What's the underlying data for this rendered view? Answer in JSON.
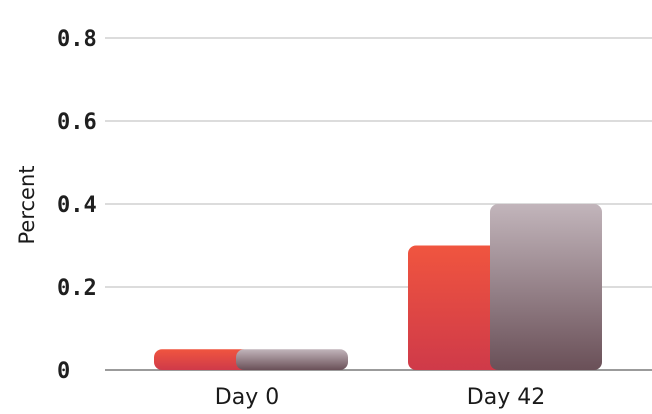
{
  "chart_data": {
    "type": "bar",
    "categories": [
      "Day 0",
      "Day 42"
    ],
    "series": [
      {
        "values": [
          0.05,
          0.3
        ]
      },
      {
        "values": [
          0.05,
          0.4
        ]
      }
    ],
    "ylabel": "Percent",
    "xlabel": "",
    "yticks": [
      "0",
      "0.2",
      "0.4",
      "0.6",
      "0.8"
    ],
    "ylim": [
      0,
      0.8
    ],
    "grid": true,
    "legend": "none",
    "colors": {
      "series_0_top": "#f0553f",
      "series_0_bottom": "#cf3a49",
      "series_1_top": "#c2b5bb",
      "series_1_bottom": "#6a5058",
      "grid": "#c8c8c8"
    }
  }
}
